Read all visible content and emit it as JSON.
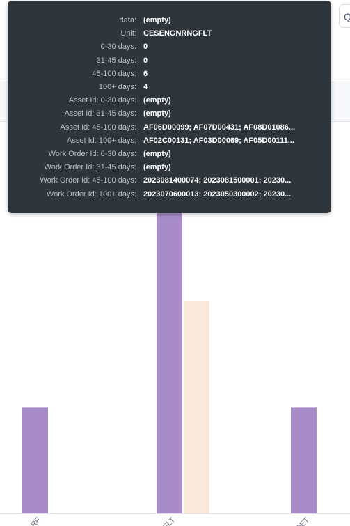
{
  "corner_button": {
    "icon": "search-icon",
    "glyph": "Q"
  },
  "tooltip": {
    "rows": [
      {
        "key": "data:",
        "value": "(empty)"
      },
      {
        "key": "Unit:",
        "value": "CESENGNRNGFLT"
      },
      {
        "key": "0-30 days:",
        "value": "0"
      },
      {
        "key": "31-45 days:",
        "value": "0"
      },
      {
        "key": "45-100 days:",
        "value": "6"
      },
      {
        "key": "100+ days:",
        "value": "4"
      },
      {
        "key": "Asset Id: 0-30 days:",
        "value": "(empty)"
      },
      {
        "key": "Asset Id: 31-45 days:",
        "value": "(empty)"
      },
      {
        "key": "Asset Id: 45-100 days:",
        "value": "AF06D00099; AF07D00431; AF08D01086..."
      },
      {
        "key": "Asset Id: 100+ days:",
        "value": "AF02C00131; AF03D00069; AF05D00111..."
      },
      {
        "key": "Work Order Id: 0-30 days:",
        "value": "(empty)"
      },
      {
        "key": "Work Order Id: 31-45 days:",
        "value": "(empty)"
      },
      {
        "key": "Work Order Id: 45-100 days:",
        "value": "2023081400074; 2023081500001; 20230..."
      },
      {
        "key": "Work Order Id: 100+ days:",
        "value": "2023070600013; 2023050300002; 20230..."
      }
    ]
  },
  "chart_data": {
    "type": "bar",
    "categories": [
      "…RF",
      "…FLT",
      "…DET"
    ],
    "series": [
      {
        "values": [
          2,
          6,
          2
        ],
        "color": "#a78cc7"
      },
      {
        "values": [
          0,
          4,
          0
        ],
        "color": "#fbe8dc"
      }
    ],
    "ylim": [
      0,
      7
    ],
    "grid": false
  }
}
